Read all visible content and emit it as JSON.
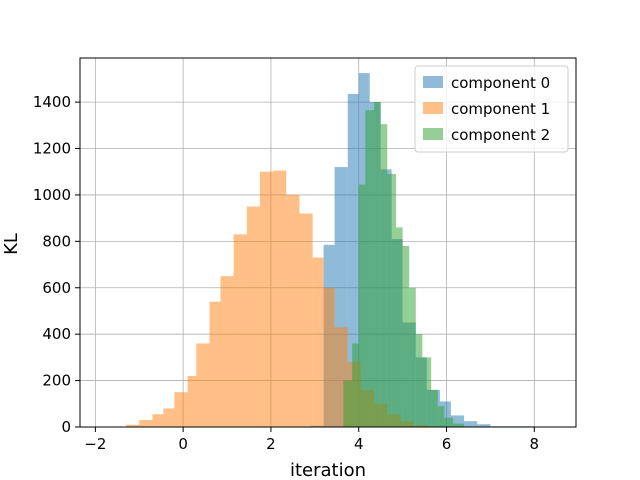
{
  "chart_data": {
    "type": "histogram",
    "xlabel": "iteration",
    "ylabel": "KL",
    "xlim": [
      -2.35,
      8.95
    ],
    "ylim": [
      0,
      1590
    ],
    "x_ticks": [
      -2,
      0,
      2,
      4,
      6,
      8
    ],
    "y_ticks": [
      0,
      200,
      400,
      600,
      800,
      1000,
      1200,
      1400
    ],
    "grid": true,
    "legend_position": "top-right",
    "series": [
      {
        "name": "component 0",
        "color": "#1f77b4",
        "opacity": 0.5,
        "bins": [
          {
            "x0": 2.9,
            "x1": 3.2,
            "y": 5
          },
          {
            "x0": 3.2,
            "x1": 3.45,
            "y": 785
          },
          {
            "x0": 3.45,
            "x1": 3.75,
            "y": 1120
          },
          {
            "x0": 3.75,
            "x1": 4.0,
            "y": 1435
          },
          {
            "x0": 4.0,
            "x1": 4.25,
            "y": 1525
          },
          {
            "x0": 4.25,
            "x1": 4.5,
            "y": 1400
          },
          {
            "x0": 4.5,
            "x1": 4.75,
            "y": 1110
          },
          {
            "x0": 4.75,
            "x1": 5.0,
            "y": 810
          },
          {
            "x0": 5.0,
            "x1": 5.3,
            "y": 450
          },
          {
            "x0": 5.3,
            "x1": 5.55,
            "y": 300
          },
          {
            "x0": 5.55,
            "x1": 5.85,
            "y": 160
          },
          {
            "x0": 5.85,
            "x1": 6.1,
            "y": 110
          },
          {
            "x0": 6.1,
            "x1": 6.4,
            "y": 50
          },
          {
            "x0": 6.4,
            "x1": 6.7,
            "y": 25
          },
          {
            "x0": 6.7,
            "x1": 7.0,
            "y": 12
          },
          {
            "x0": 7.0,
            "x1": 8.0,
            "y": 3
          }
        ]
      },
      {
        "name": "component 1",
        "color": "#ff7f0e",
        "opacity": 0.5,
        "bins": [
          {
            "x0": -1.3,
            "x1": -1.0,
            "y": 10
          },
          {
            "x0": -1.0,
            "x1": -0.7,
            "y": 30
          },
          {
            "x0": -0.7,
            "x1": -0.45,
            "y": 55
          },
          {
            "x0": -0.45,
            "x1": -0.2,
            "y": 80
          },
          {
            "x0": -0.2,
            "x1": 0.1,
            "y": 150
          },
          {
            "x0": 0.1,
            "x1": 0.3,
            "y": 220
          },
          {
            "x0": 0.3,
            "x1": 0.6,
            "y": 360
          },
          {
            "x0": 0.6,
            "x1": 0.85,
            "y": 540
          },
          {
            "x0": 0.85,
            "x1": 1.15,
            "y": 650
          },
          {
            "x0": 1.15,
            "x1": 1.45,
            "y": 830
          },
          {
            "x0": 1.45,
            "x1": 1.75,
            "y": 950
          },
          {
            "x0": 1.75,
            "x1": 2.05,
            "y": 1100
          },
          {
            "x0": 2.05,
            "x1": 2.35,
            "y": 1105
          },
          {
            "x0": 2.35,
            "x1": 2.65,
            "y": 1000
          },
          {
            "x0": 2.65,
            "x1": 2.95,
            "y": 920
          },
          {
            "x0": 2.95,
            "x1": 3.2,
            "y": 730
          },
          {
            "x0": 3.2,
            "x1": 3.45,
            "y": 600
          },
          {
            "x0": 3.45,
            "x1": 3.75,
            "y": 430
          },
          {
            "x0": 3.75,
            "x1": 4.05,
            "y": 280
          },
          {
            "x0": 4.05,
            "x1": 4.35,
            "y": 160
          },
          {
            "x0": 4.35,
            "x1": 4.65,
            "y": 100
          },
          {
            "x0": 4.65,
            "x1": 4.95,
            "y": 55
          },
          {
            "x0": 4.95,
            "x1": 5.25,
            "y": 25
          },
          {
            "x0": 5.25,
            "x1": 5.55,
            "y": 8
          }
        ]
      },
      {
        "name": "component 2",
        "color": "#2ca02c",
        "opacity": 0.5,
        "bins": [
          {
            "x0": 3.65,
            "x1": 3.85,
            "y": 200
          },
          {
            "x0": 3.85,
            "x1": 4.0,
            "y": 360
          },
          {
            "x0": 4.0,
            "x1": 4.15,
            "y": 1045
          },
          {
            "x0": 4.15,
            "x1": 4.35,
            "y": 1365
          },
          {
            "x0": 4.35,
            "x1": 4.5,
            "y": 1400
          },
          {
            "x0": 4.5,
            "x1": 4.65,
            "y": 1305
          },
          {
            "x0": 4.65,
            "x1": 4.85,
            "y": 1090
          },
          {
            "x0": 4.85,
            "x1": 5.0,
            "y": 860
          },
          {
            "x0": 5.0,
            "x1": 5.15,
            "y": 780
          },
          {
            "x0": 5.15,
            "x1": 5.3,
            "y": 600
          },
          {
            "x0": 5.3,
            "x1": 5.45,
            "y": 400
          },
          {
            "x0": 5.45,
            "x1": 5.65,
            "y": 300
          },
          {
            "x0": 5.65,
            "x1": 5.8,
            "y": 160
          },
          {
            "x0": 5.8,
            "x1": 5.95,
            "y": 90
          },
          {
            "x0": 5.95,
            "x1": 6.15,
            "y": 40
          },
          {
            "x0": 6.15,
            "x1": 6.4,
            "y": 15
          }
        ]
      }
    ]
  }
}
